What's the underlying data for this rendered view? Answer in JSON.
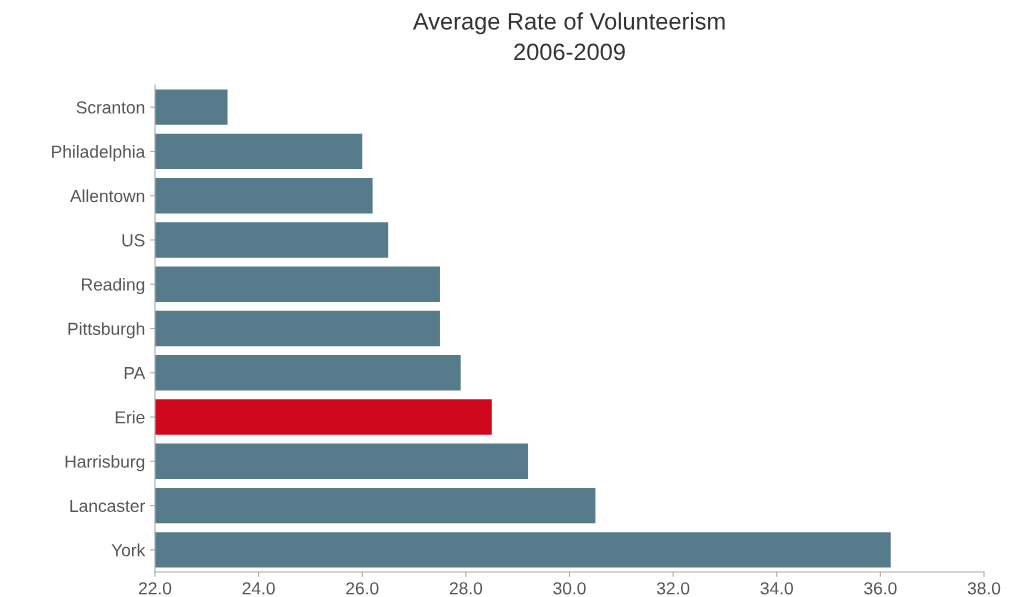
{
  "chart_data": {
    "type": "bar",
    "orientation": "horizontal",
    "title": "Average Rate of Volunteerism\n2006-2009",
    "categories": [
      "Scranton",
      "Philadelphia",
      "Allentown",
      "US",
      "Reading",
      "Pittsburgh",
      "PA",
      "Erie",
      "Harrisburg",
      "Lancaster",
      "York"
    ],
    "values": [
      23.4,
      26.0,
      26.2,
      26.5,
      27.5,
      27.5,
      27.9,
      28.5,
      29.2,
      30.5,
      36.2
    ],
    "colors": [
      "#567b8b",
      "#567b8b",
      "#567b8b",
      "#567b8b",
      "#567b8b",
      "#567b8b",
      "#567b8b",
      "#d0081e",
      "#567b8b",
      "#567b8b",
      "#567b8b"
    ],
    "xlim": [
      22,
      38
    ],
    "xticks": [
      {
        "value": 22,
        "label": "22.0"
      },
      {
        "value": 24,
        "label": "24.0"
      },
      {
        "value": 26,
        "label": "26.0"
      },
      {
        "value": 28,
        "label": "28.0"
      },
      {
        "value": 30,
        "label": "30.0"
      },
      {
        "value": 32,
        "label": "32.0"
      },
      {
        "value": 34,
        "label": "34.0"
      },
      {
        "value": 36,
        "label": "36.0"
      },
      {
        "value": 38,
        "label": "38.0"
      }
    ],
    "grid": false,
    "legend": false
  }
}
